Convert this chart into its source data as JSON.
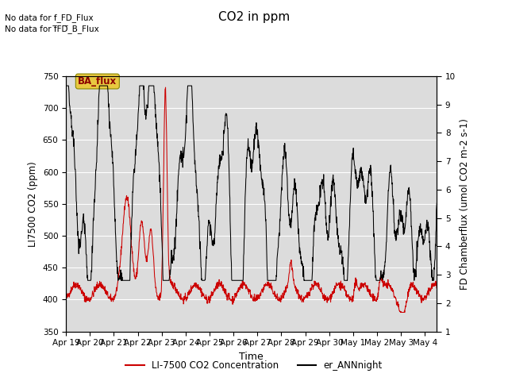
{
  "title": "CO2 in ppm",
  "ylabel_left": "LI7500 CO2 (ppm)",
  "ylabel_right": "FD Chamberflux (umol CO2 m-2 s-1)",
  "xlabel": "Time",
  "ylim_left": [
    350,
    750
  ],
  "ylim_right": [
    1.0,
    10.0
  ],
  "yticks_left": [
    350,
    400,
    450,
    500,
    550,
    600,
    650,
    700,
    750
  ],
  "yticks_right": [
    1.0,
    2.0,
    3.0,
    4.0,
    5.0,
    6.0,
    7.0,
    8.0,
    9.0,
    10.0
  ],
  "xtick_labels": [
    "Apr 19",
    "Apr 20",
    "Apr 21",
    "Apr 22",
    "Apr 23",
    "Apr 24",
    "Apr 25",
    "Apr 26",
    "Apr 27",
    "Apr 28",
    "Apr 29",
    "Apr 30",
    "May 1",
    "May 2",
    "May 3",
    "May 4"
  ],
  "no_data_text1": "No data for f_FD_Flux",
  "no_data_text2": "No data for f̅FD̅_B_Flux",
  "ba_flux_label": "BA_flux",
  "legend_label_red": "LI-7500 CO2 Concentration",
  "legend_label_black": "er_ANNnight",
  "line_color_red": "#cc0000",
  "line_color_black": "#000000",
  "axes_bg": "#dcdcdc",
  "ba_flux_bg": "#e8c840",
  "ba_flux_text_color": "#8b0000",
  "figsize": [
    6.4,
    4.8
  ],
  "dpi": 100
}
